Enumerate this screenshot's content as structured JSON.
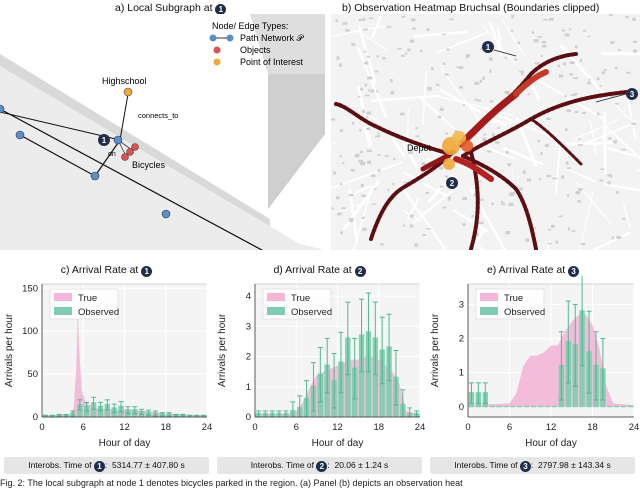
{
  "panel_a": {
    "title": "a) Local Subgraph at",
    "marker": "1",
    "legend_title": "Node/ Edge Types:",
    "legend_items": [
      {
        "label": "Path Network 𝒫",
        "color": "#5b8fc7"
      },
      {
        "label": "Objects",
        "color": "#e05252"
      },
      {
        "label": "Point of Interest",
        "color": "#f2a93b"
      }
    ],
    "labels": {
      "highschool": "Highschool",
      "connects": "connects_to",
      "on": "on",
      "bicycles": "Bicycles",
      "node_marker": "1"
    }
  },
  "panel_b": {
    "title": "b) Observation Heatmap Bruchsal (Boundaries clipped)",
    "labels": {
      "depot": "Depot",
      "m1": "1",
      "m2": "2",
      "m3": "3"
    }
  },
  "chart_data": [
    {
      "type": "bar",
      "title": "c) Arrival Rate at",
      "marker": "1",
      "xlabel": "Hour of day",
      "ylabel": "Arrivals per hour",
      "xlim": [
        0,
        24
      ],
      "ylim": [
        0,
        155
      ],
      "xticks": [
        "0",
        "6",
        "12",
        "18",
        "24"
      ],
      "yticks": [
        "0",
        "50",
        "100",
        "150"
      ],
      "xtick_values": [
        0,
        6,
        12,
        18,
        24
      ],
      "ytick_values": [
        0,
        50,
        100,
        150
      ],
      "legend_location": "upper-left",
      "series": [
        {
          "name": "True",
          "kind": "area",
          "color": "#f4b6d8",
          "x": [
            0,
            4,
            4.6,
            5,
            5.2,
            5.4,
            5.8,
            6.3,
            7,
            8,
            10,
            12,
            14,
            16,
            18,
            20,
            24
          ],
          "y": [
            2,
            3,
            10,
            60,
            125,
            80,
            30,
            18,
            14,
            10,
            9,
            9,
            8,
            6,
            4,
            3,
            2
          ]
        },
        {
          "name": "Observed",
          "kind": "bar",
          "color": "#7fcdb0",
          "x": [
            0.5,
            1.5,
            2.5,
            3.5,
            4.5,
            5.5,
            6.5,
            7.5,
            8.5,
            9.5,
            10.5,
            11.5,
            12.5,
            13.5,
            14.5,
            15.5,
            16.5,
            17.5,
            18.5,
            19.5,
            20.5,
            21.5,
            22.5,
            23.5
          ],
          "values": [
            1,
            1,
            2,
            2,
            4,
            14,
            12,
            16,
            12,
            14,
            10,
            12,
            8,
            8,
            6,
            5,
            4,
            3,
            3,
            2,
            2,
            1,
            1,
            1
          ],
          "errors": [
            1,
            1,
            1,
            1,
            3,
            6,
            5,
            7,
            5,
            6,
            5,
            6,
            4,
            4,
            3,
            3,
            3,
            2,
            2,
            1,
            1,
            1,
            1,
            1
          ]
        }
      ]
    },
    {
      "type": "bar",
      "title": "d) Arrival Rate at",
      "marker": "2",
      "xlabel": "Hour of day",
      "ylabel": "Arrivals per hour",
      "xlim": [
        0,
        24
      ],
      "ylim": [
        0,
        4.4
      ],
      "xticks": [
        "0",
        "6",
        "12",
        "18",
        "24"
      ],
      "yticks": [
        "0",
        "1",
        "2",
        "3",
        "4"
      ],
      "xtick_values": [
        0,
        6,
        12,
        18,
        24
      ],
      "ytick_values": [
        0,
        1,
        2,
        3,
        4
      ],
      "legend_location": "upper-left",
      "series": [
        {
          "name": "True",
          "kind": "area",
          "color": "#f4b6d8",
          "x": [
            0,
            5,
            6,
            7,
            8,
            9,
            10,
            11,
            12,
            13,
            14,
            15,
            16,
            17,
            18,
            19,
            20,
            21,
            22,
            24
          ],
          "y": [
            0.1,
            0.1,
            0.2,
            0.5,
            1.0,
            1.4,
            1.5,
            1.6,
            1.7,
            1.8,
            1.9,
            1.9,
            2.0,
            2.0,
            1.9,
            1.7,
            1.5,
            1.1,
            0.2,
            0.1
          ]
        },
        {
          "name": "Observed",
          "kind": "bar",
          "color": "#7fcdb0",
          "x": [
            0.5,
            1.5,
            2.5,
            3.5,
            4.5,
            5.5,
            6.5,
            7.5,
            8.5,
            9.5,
            10.5,
            11.5,
            12.5,
            13.5,
            14.5,
            15.5,
            16.5,
            17.5,
            18.5,
            19.5,
            20.5,
            21.5,
            22.5,
            23.5
          ],
          "values": [
            0.1,
            0.1,
            0.1,
            0.1,
            0.1,
            0.2,
            0.3,
            0.6,
            1.0,
            1.4,
            1.7,
            1.2,
            1.8,
            2.6,
            1.6,
            2.7,
            2.8,
            2.6,
            2.2,
            2.3,
            1.3,
            0.4,
            0.1,
            0.1
          ],
          "errors": [
            0.1,
            0.1,
            0.1,
            0.1,
            0.1,
            0.3,
            0.4,
            0.6,
            0.8,
            0.9,
            0.9,
            0.9,
            1.0,
            1.2,
            1.0,
            1.2,
            1.3,
            1.2,
            1.1,
            1.1,
            0.9,
            0.5,
            0.2,
            0.1
          ]
        }
      ]
    },
    {
      "type": "bar",
      "title": "e) Arrival Rate at",
      "marker": "3",
      "xlabel": "Hour of day",
      "ylabel": "Arrivals per hour",
      "xlim": [
        0,
        24
      ],
      "ylim": [
        -0.3,
        3.6
      ],
      "xticks": [
        "0",
        "6",
        "12",
        "18",
        "24"
      ],
      "yticks": [
        "0",
        "1",
        "2",
        "3"
      ],
      "xtick_values": [
        0,
        6,
        12,
        18,
        24
      ],
      "ytick_values": [
        0,
        1,
        2,
        3
      ],
      "legend_location": "upper-left",
      "series": [
        {
          "name": "True",
          "kind": "area",
          "color": "#f4b6d8",
          "x": [
            0,
            6,
            7,
            8,
            9,
            10,
            11,
            12,
            13,
            14,
            15,
            16,
            17,
            18,
            19,
            20,
            21,
            24
          ],
          "y": [
            0.05,
            0.1,
            0.4,
            1.2,
            1.5,
            1.5,
            1.6,
            1.8,
            1.8,
            2.2,
            2.5,
            2.7,
            2.7,
            2.4,
            1.7,
            0.6,
            0.1,
            0.05
          ]
        },
        {
          "name": "Observed",
          "kind": "bar",
          "color": "#7fcdb0",
          "x": [
            0.5,
            1.5,
            2.5,
            3.5,
            4.5,
            5.5,
            6.5,
            7.5,
            8.5,
            9.5,
            10.5,
            11.5,
            12.5,
            13.5,
            14.5,
            15.5,
            16.5,
            17.5,
            18.5,
            19.5,
            20.5,
            21.5,
            22.5,
            23.5
          ],
          "values": [
            0.4,
            0.4,
            0.4,
            0,
            0,
            0,
            0,
            0,
            0,
            0,
            0,
            0,
            0,
            1.2,
            1.9,
            1.8,
            2.8,
            1.6,
            1.2,
            1.1,
            0,
            0,
            0,
            0
          ],
          "errors": [
            0.3,
            0.3,
            0.3,
            0,
            0,
            0,
            0,
            0,
            0,
            0,
            0,
            0,
            0,
            1.0,
            1.2,
            1.2,
            1.6,
            1.2,
            1.0,
            0.9,
            0,
            0,
            0,
            0
          ]
        }
      ]
    }
  ],
  "interarrival": [
    {
      "label": "Interobs. Time of",
      "marker": "1",
      "value": "5314.77 ± 407.80 s"
    },
    {
      "label": "Interobs. Time of",
      "marker": "2",
      "value": "20.06 ± 1.24 s"
    },
    {
      "label": "Interobs. Time of",
      "marker": "3",
      "value": "2797.98 ± 143.34 s"
    }
  ],
  "caption": "Fig. 2: The local subgraph at node 1 denotes bicycles parked in the region. (a) Panel (b) depicts an observation heat"
}
